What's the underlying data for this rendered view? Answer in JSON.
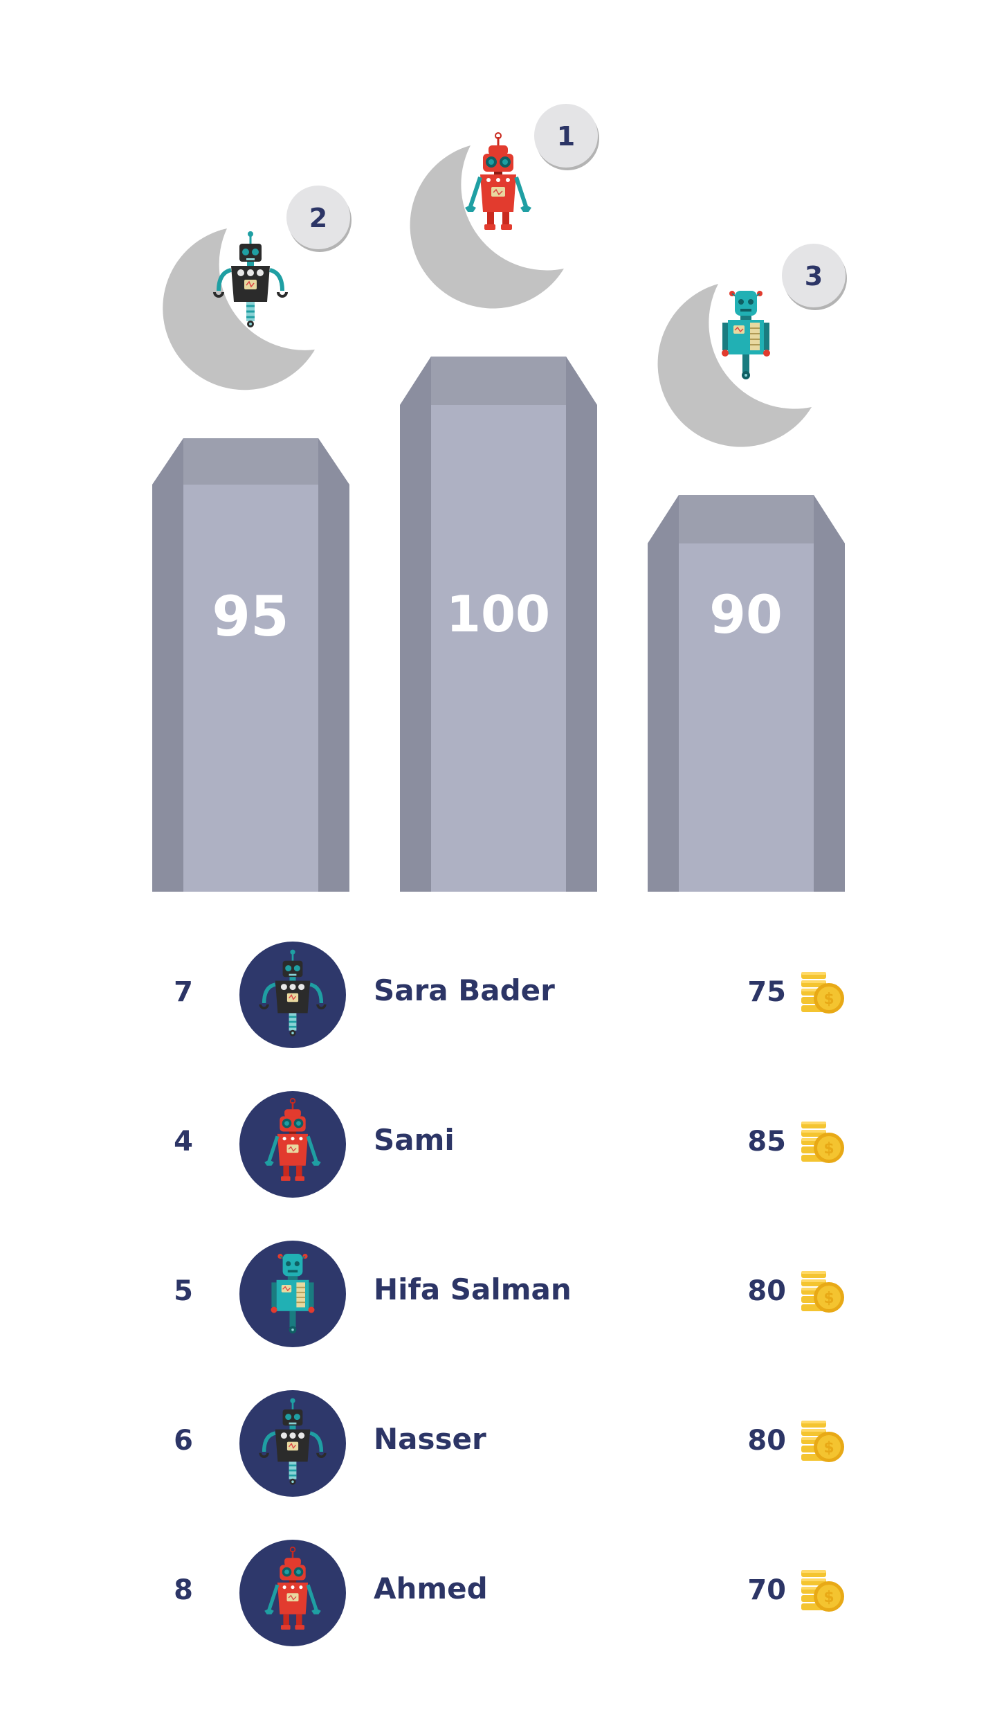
{
  "podium": [
    {
      "place": "2",
      "score": "95",
      "robot": "dark-robot"
    },
    {
      "place": "1",
      "score": "100",
      "robot": "red-robot"
    },
    {
      "place": "3",
      "score": "90",
      "robot": "teal-robot"
    }
  ],
  "leaderboard": [
    {
      "rank": "7",
      "name": "Sara Bader",
      "points": "75",
      "robot": "dark-robot"
    },
    {
      "rank": "4",
      "name": "Sami",
      "points": "85",
      "robot": "red-robot"
    },
    {
      "rank": "5",
      "name": "Hifa Salman",
      "points": "80",
      "robot": "teal-robot"
    },
    {
      "rank": "6",
      "name": "Nasser",
      "points": "80",
      "robot": "dark-robot"
    },
    {
      "rank": "8",
      "name": "Ahmed",
      "points": "70",
      "robot": "red-robot"
    }
  ],
  "icons": {
    "points": "coins-icon"
  },
  "colors": {
    "pillar_face": "#aeb1c3",
    "pillar_side": "#8b8e9f",
    "pillar_top": "#9c9fae",
    "avatar_bg": "#2e386b",
    "text": "#2c3566",
    "coin": "#f4c430"
  }
}
